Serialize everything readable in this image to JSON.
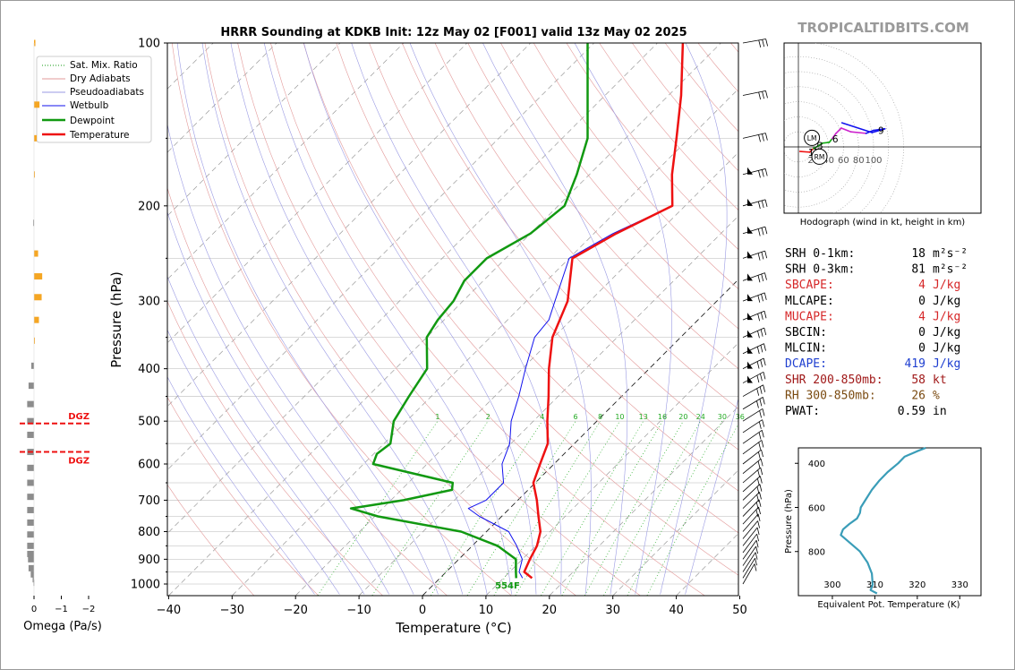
{
  "main": {
    "title": "HRRR Sounding at KDKB Init: 12z May 02 [F001] valid 13z May 02 2025",
    "xlabel": "Temperature (°C)",
    "ylabel": "Pressure (hPa)",
    "surface_label": "554F",
    "xticks": [
      "−40",
      "−30",
      "−20",
      "−10",
      "0",
      "10",
      "20",
      "30",
      "40",
      "50"
    ],
    "yticks": [
      "100",
      "200",
      "300",
      "400",
      "500",
      "600",
      "700",
      "800",
      "900",
      "1000"
    ],
    "mixing_ratio_labels": [
      "1",
      "2",
      "4",
      "6",
      "8",
      "10",
      "13",
      "16",
      "20",
      "24",
      "30",
      "36"
    ],
    "legend": {
      "sat_mix": "Sat. Mix. Ratio",
      "dry": "Dry Adiabats",
      "pseudo": "Pseudoadiabats",
      "wetbulb": "Wetbulb",
      "dewpoint": "Dewpoint",
      "temperature": "Temperature"
    }
  },
  "brand": "TROPICALTIDBITS.COM",
  "omega": {
    "label": "Omega (Pa/s)",
    "ticks": [
      "0",
      "−1",
      "−2"
    ],
    "dgz_label": "DGZ"
  },
  "hodograph": {
    "caption": "Hodograph (wind in kt, height in km)",
    "ring_labels": [
      "20",
      "40",
      "60",
      "80",
      "100"
    ],
    "height_labels": [
      "1",
      "2",
      "3",
      "6",
      "9"
    ],
    "lm": "LM",
    "rm": "RM"
  },
  "indices": [
    {
      "label": "SRH 0-1km:",
      "value": "18",
      "unit": "m²s⁻²",
      "color": "#000000"
    },
    {
      "label": "SRH 0-3km:",
      "value": "81",
      "unit": "m²s⁻²",
      "color": "#000000"
    },
    {
      "label": "SBCAPE:",
      "value": "4",
      "unit": "J/kg",
      "color": "#d62728"
    },
    {
      "label": "MLCAPE:",
      "value": "0",
      "unit": "J/kg",
      "color": "#000000"
    },
    {
      "label": "MUCAPE:",
      "value": "4",
      "unit": "J/kg",
      "color": "#d62728"
    },
    {
      "label": "SBCIN:",
      "value": "0",
      "unit": "J/kg",
      "color": "#000000"
    },
    {
      "label": "MLCIN:",
      "value": "0",
      "unit": "J/kg",
      "color": "#000000"
    },
    {
      "label": "DCAPE:",
      "value": "419",
      "unit": "J/kg",
      "color": "#1f3fd0"
    },
    {
      "label": "SHR 200-850mb:",
      "value": "58",
      "unit": "kt",
      "color": "#a01818"
    },
    {
      "label": "RH 300-850mb:",
      "value": "26",
      "unit": "%",
      "color": "#7a4a10"
    },
    {
      "label": "PWAT:",
      "value": "0.59",
      "unit": "in",
      "color": "#000000"
    }
  ],
  "theta_e_plot": {
    "xlabel": "Equivalent Pot. Temperature (K)",
    "ylabel": "Pressure (hPa)",
    "xticks": [
      "300",
      "310",
      "320",
      "330"
    ],
    "yticks": [
      "400",
      "600",
      "800"
    ]
  },
  "colors": {
    "temperature": "#ee1111",
    "dewpoint": "#119911",
    "wetbulb": "#1111ee",
    "theta_e": "#3a9db8",
    "omega_up": "#f5a623",
    "omega_down": "#8c8c8c",
    "dgz": "#ee1111"
  },
  "chart_data": [
    {
      "type": "line",
      "chart": "skew-t",
      "title": "HRRR Sounding at KDKB Init: 12z May 02 [F001] valid 13z May 02 2025",
      "xlabel": "Temperature (°C)",
      "ylabel": "Pressure (hPa)",
      "xlim": [
        -40,
        50
      ],
      "ylim": [
        1050,
        100
      ],
      "yscale": "log",
      "series": [
        {
          "name": "Temperature",
          "pressure": [
            975,
            950,
            900,
            850,
            800,
            750,
            700,
            650,
            600,
            550,
            500,
            450,
            400,
            350,
            300,
            250,
            225,
            200,
            175,
            150,
            125,
            100
          ],
          "temp": [
            14.5,
            12.3,
            11.2,
            10.2,
            8.5,
            5.8,
            3.0,
            -0.3,
            -2.2,
            -4.2,
            -7.8,
            -11.5,
            -15.8,
            -20.2,
            -23.5,
            -29.5,
            -26.5,
            -22.0,
            -27.0,
            -32.0,
            -38.0,
            -46.0
          ]
        },
        {
          "name": "Dewpoint",
          "pressure": [
            975,
            950,
            900,
            850,
            800,
            750,
            725,
            700,
            670,
            650,
            600,
            575,
            550,
            500,
            450,
            400,
            350,
            325,
            300,
            275,
            250,
            225,
            200,
            175,
            150,
            100
          ],
          "temp": [
            12.0,
            11.0,
            9.0,
            4.0,
            -4.0,
            -19.5,
            -25.0,
            -18.0,
            -12.0,
            -13.0,
            -28.5,
            -29.5,
            -29.0,
            -32.0,
            -33.5,
            -35.0,
            -40.0,
            -41.0,
            -41.5,
            -43.0,
            -43.0,
            -40.0,
            -39.0,
            -42.0,
            -46.0,
            -61.0
          ]
        },
        {
          "name": "Wetbulb",
          "pressure": [
            975,
            950,
            900,
            850,
            800,
            750,
            725,
            700,
            650,
            600,
            550,
            500,
            450,
            400,
            350,
            325,
            300,
            250,
            225,
            200,
            175,
            150,
            125,
            100
          ],
          "temp": [
            13.0,
            11.5,
            10.0,
            7.0,
            3.5,
            -3.5,
            -6.5,
            -5.0,
            -5.0,
            -8.2,
            -10.2,
            -13.5,
            -16.2,
            -19.5,
            -23.0,
            -23.5,
            -25.5,
            -30.0,
            -27.0,
            -22.0,
            -27.0,
            -32.0,
            -38.0,
            -46.0
          ]
        }
      ]
    },
    {
      "type": "bar",
      "chart": "omega",
      "xlabel": "Omega (Pa/s)",
      "xlim": [
        0.1,
        -2.2
      ],
      "pressure": [
        100,
        130,
        150,
        175,
        215,
        245,
        270,
        295,
        325,
        355,
        395,
        430,
        465,
        500,
        530,
        570,
        610,
        650,
        690,
        730,
        770,
        810,
        850,
        880,
        900,
        935,
        960,
        980,
        995
      ],
      "values": [
        -0.05,
        -0.2,
        -0.1,
        -0.03,
        0.03,
        -0.15,
        -0.3,
        -0.28,
        -0.18,
        -0.02,
        0.1,
        0.2,
        0.25,
        0.25,
        0.25,
        0.25,
        0.25,
        0.25,
        0.25,
        0.25,
        0.25,
        0.25,
        0.25,
        0.25,
        0.22,
        0.2,
        0.12,
        0.05,
        0.02
      ],
      "dgz_pressure": [
        505,
        570
      ]
    },
    {
      "type": "line",
      "chart": "hodograph",
      "xlabel": "u (kt)",
      "ylabel": "v (kt)",
      "points": [
        {
          "u": 2,
          "v": -6,
          "color": "#ee1111"
        },
        {
          "u": 15,
          "v": -7,
          "color": "#ee1111"
        },
        {
          "u": 20,
          "v": -2,
          "color": "#ee1111"
        },
        {
          "u": 26,
          "v": 1,
          "color": "#11aa11"
        },
        {
          "u": 32,
          "v": 5,
          "color": "#11aa11"
        },
        {
          "u": 41,
          "v": 6,
          "color": "#11aa11"
        },
        {
          "u": 45,
          "v": 11,
          "color": "#11aa11"
        },
        {
          "u": 50,
          "v": 18,
          "color": "#cc22cc"
        },
        {
          "u": 57,
          "v": 25,
          "color": "#cc22cc"
        },
        {
          "u": 70,
          "v": 20,
          "color": "#cc22cc"
        },
        {
          "u": 90,
          "v": 18,
          "color": "#cc22cc"
        },
        {
          "u": 100,
          "v": 22,
          "color": "#1111ee"
        },
        {
          "u": 115,
          "v": 24,
          "color": "#1111ee"
        },
        {
          "u": 98,
          "v": 19,
          "color": "#1111ee"
        },
        {
          "u": 58,
          "v": 32,
          "color": "#1111ee"
        }
      ],
      "height_labels": [
        {
          "h": "1",
          "u": 17,
          "v": -7
        },
        {
          "h": "2",
          "u": 24,
          "v": 1
        },
        {
          "h": "3",
          "u": 29,
          "v": 2
        },
        {
          "h": "6",
          "u": 49,
          "v": 11
        },
        {
          "h": "9",
          "u": 110,
          "v": 22
        }
      ],
      "lm": {
        "u": 18,
        "v": 12
      },
      "rm": {
        "u": 28,
        "v": -13
      }
    },
    {
      "type": "line",
      "chart": "theta-e",
      "xlabel": "Equivalent Pot. Temperature (K)",
      "ylabel": "Pressure (hPa)",
      "xlim": [
        292,
        335
      ],
      "ylim": [
        1000,
        330
      ],
      "series": [
        {
          "name": "",
          "pressure": [
            330,
            345,
            370,
            400,
            440,
            480,
            520,
            560,
            600,
            625,
            650,
            675,
            700,
            725,
            775,
            800,
            850,
            900,
            950,
            975,
            990
          ],
          "theta_e": [
            322,
            320,
            317,
            315.5,
            313,
            311,
            309.3,
            308,
            306.7,
            306.5,
            305.8,
            304,
            302.5,
            302,
            305,
            306.5,
            308.3,
            309.3,
            309.5,
            309.0,
            310.5
          ]
        }
      ]
    }
  ]
}
